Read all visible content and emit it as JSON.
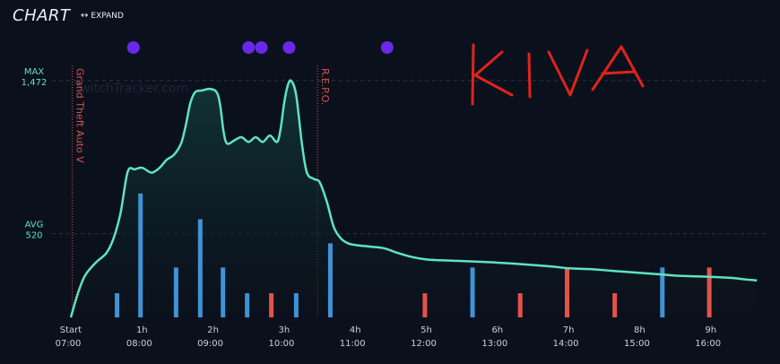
{
  "header": {
    "title": "CHART",
    "expand_label": "EXPAND"
  },
  "watermark": "TwitchTracker.com",
  "annotation_text": "KIVA",
  "colors": {
    "background": "#0b111c",
    "line": "#5fe3c0",
    "area": "#0f3a38",
    "stream_bar": "#3f93d6",
    "highlight_bar": "#e4524a",
    "marker": "#6a28e8",
    "max_label": "#5fe3c0",
    "game_marker": "#d9534f",
    "annotation": "#e0231c"
  },
  "chart_data": {
    "type": "area",
    "x_unit": "hours since start",
    "x_range": [
      0,
      9.8
    ],
    "y_range": [
      0,
      1550
    ],
    "x_ticks": [
      {
        "x": 0,
        "label": "Start",
        "time": "07:00"
      },
      {
        "x": 1,
        "label": "1h",
        "time": "08:00"
      },
      {
        "x": 2,
        "label": "2h",
        "time": "09:00"
      },
      {
        "x": 3,
        "label": "3h",
        "time": "10:00"
      },
      {
        "x": 4,
        "label": "4h",
        "time": "11:00"
      },
      {
        "x": 5,
        "label": "5h",
        "time": "12:00"
      },
      {
        "x": 6,
        "label": "6h",
        "time": "13:00"
      },
      {
        "x": 7,
        "label": "7h",
        "time": "14:00"
      },
      {
        "x": 8,
        "label": "8h",
        "time": "15:00"
      },
      {
        "x": 9,
        "label": "9h",
        "time": "16:00"
      }
    ],
    "reference_lines": [
      {
        "name": "MAX",
        "value": 1472,
        "value_label": "1,472"
      },
      {
        "name": "AVG",
        "value": 520,
        "value_label": "520"
      }
    ],
    "viewers": [
      [
        0,
        0
      ],
      [
        0.1,
        150
      ],
      [
        0.2,
        260
      ],
      [
        0.35,
        340
      ],
      [
        0.5,
        400
      ],
      [
        0.6,
        490
      ],
      [
        0.7,
        650
      ],
      [
        0.8,
        905
      ],
      [
        0.9,
        920
      ],
      [
        1.0,
        930
      ],
      [
        1.1,
        905
      ],
      [
        1.15,
        900
      ],
      [
        1.25,
        930
      ],
      [
        1.35,
        980
      ],
      [
        1.45,
        1010
      ],
      [
        1.55,
        1080
      ],
      [
        1.62,
        1200
      ],
      [
        1.68,
        1330
      ],
      [
        1.75,
        1400
      ],
      [
        1.85,
        1410
      ],
      [
        1.95,
        1420
      ],
      [
        2.05,
        1400
      ],
      [
        2.1,
        1320
      ],
      [
        2.15,
        1150
      ],
      [
        2.2,
        1080
      ],
      [
        2.3,
        1100
      ],
      [
        2.4,
        1120
      ],
      [
        2.5,
        1090
      ],
      [
        2.6,
        1120
      ],
      [
        2.7,
        1090
      ],
      [
        2.8,
        1130
      ],
      [
        2.9,
        1090
      ],
      [
        2.95,
        1170
      ],
      [
        3.0,
        1330
      ],
      [
        3.05,
        1440
      ],
      [
        3.1,
        1470
      ],
      [
        3.17,
        1380
      ],
      [
        3.25,
        1080
      ],
      [
        3.32,
        900
      ],
      [
        3.42,
        860
      ],
      [
        3.5,
        840
      ],
      [
        3.6,
        720
      ],
      [
        3.7,
        560
      ],
      [
        3.8,
        490
      ],
      [
        3.9,
        460
      ],
      [
        4.0,
        450
      ],
      [
        4.2,
        440
      ],
      [
        4.4,
        430
      ],
      [
        4.6,
        400
      ],
      [
        4.8,
        375
      ],
      [
        5.0,
        360
      ],
      [
        5.2,
        355
      ],
      [
        5.5,
        350
      ],
      [
        5.8,
        345
      ],
      [
        6.0,
        340
      ],
      [
        6.2,
        335
      ],
      [
        6.5,
        325
      ],
      [
        6.8,
        315
      ],
      [
        7.0,
        305
      ],
      [
        7.3,
        300
      ],
      [
        7.6,
        290
      ],
      [
        7.9,
        280
      ],
      [
        8.2,
        270
      ],
      [
        8.5,
        260
      ],
      [
        8.8,
        255
      ],
      [
        9.1,
        250
      ],
      [
        9.3,
        245
      ],
      [
        9.5,
        235
      ],
      [
        9.65,
        230
      ]
    ],
    "bars": [
      {
        "x": 0.65,
        "value": 150,
        "highlight": false
      },
      {
        "x": 0.98,
        "value": 770,
        "highlight": false
      },
      {
        "x": 1.48,
        "value": 310,
        "highlight": false
      },
      {
        "x": 1.82,
        "value": 610,
        "highlight": false
      },
      {
        "x": 2.14,
        "value": 310,
        "highlight": false
      },
      {
        "x": 2.48,
        "value": 150,
        "highlight": false
      },
      {
        "x": 2.82,
        "value": 150,
        "highlight": true
      },
      {
        "x": 3.17,
        "value": 150,
        "highlight": false
      },
      {
        "x": 3.65,
        "value": 460,
        "highlight": false
      },
      {
        "x": 4.98,
        "value": 150,
        "highlight": true
      },
      {
        "x": 5.65,
        "value": 310,
        "highlight": false
      },
      {
        "x": 6.32,
        "value": 150,
        "highlight": true
      },
      {
        "x": 6.98,
        "value": 310,
        "highlight": true
      },
      {
        "x": 7.65,
        "value": 150,
        "highlight": true
      },
      {
        "x": 8.32,
        "value": 310,
        "highlight": false
      },
      {
        "x": 8.98,
        "value": 310,
        "highlight": true
      }
    ],
    "event_markers": [
      0.88,
      2.5,
      2.68,
      3.07,
      4.45
    ],
    "game_changes": [
      {
        "x": 0.02,
        "label": "Grand Theft Auto V"
      },
      {
        "x": 3.47,
        "label": "R.E.P.O."
      }
    ]
  }
}
